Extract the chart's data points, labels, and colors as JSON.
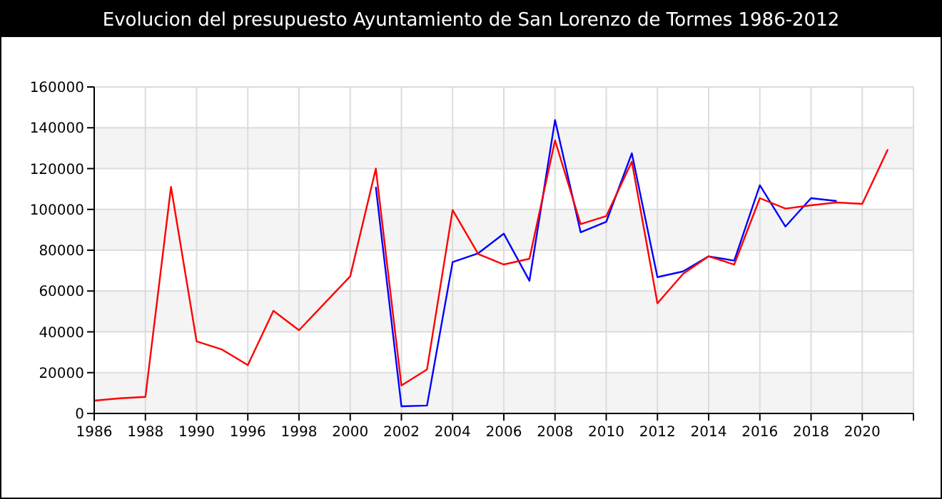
{
  "chart_data": {
    "type": "line",
    "title": "Evolucion del presupuesto Ayuntamiento de San Lorenzo de Tormes 1986-2012",
    "categories": [
      "1986",
      null,
      "1988",
      null,
      "1990",
      null,
      "1996",
      null,
      "1998",
      null,
      "2000",
      null,
      "2002",
      null,
      "2004",
      null,
      "2006",
      null,
      "2008",
      null,
      "2010",
      null,
      "2012",
      null,
      "2014",
      null,
      "2016",
      null,
      "2018",
      null,
      "2020",
      null
    ],
    "series": [
      {
        "color": "#0000ff",
        "values": [
          null,
          null,
          null,
          null,
          null,
          null,
          null,
          null,
          null,
          null,
          null,
          111000,
          3500,
          3900,
          74200,
          78500,
          88100,
          65000,
          143800,
          88800,
          93900,
          127500,
          66800,
          69600,
          77000,
          74900,
          111800,
          91600,
          105500,
          104100,
          null,
          null
        ]
      },
      {
        "color": "#ff0000",
        "values": [
          6300,
          7400,
          8100,
          111000,
          35300,
          31300,
          23700,
          50300,
          40800,
          54000,
          67200,
          120000,
          13700,
          21600,
          99700,
          78100,
          73000,
          75800,
          133800,
          92800,
          96700,
          123400,
          54000,
          68400,
          77000,
          73000,
          105500,
          100400,
          102000,
          103400,
          102700,
          129400
        ]
      }
    ],
    "ylim": [
      0,
      160000
    ],
    "yticks": [
      0,
      20000,
      40000,
      60000,
      80000,
      100000,
      120000,
      140000,
      160000
    ],
    "grid": true
  }
}
